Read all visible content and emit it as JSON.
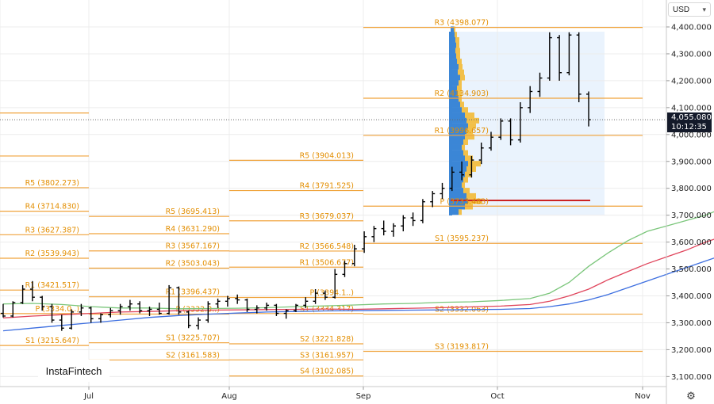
{
  "currency": {
    "label": "USD",
    "caret_icon": "chevron-down-icon"
  },
  "price_badge": {
    "price": "4,055.080",
    "countdown": "10:12:35"
  },
  "logo": {
    "text": "InstaFintech"
  },
  "settings": {
    "icon": "gear-icon"
  },
  "colors": {
    "up": "#000000",
    "pivot": "#f0a33c",
    "sma_green": "#7bc67b",
    "sma_red": "#e0455c",
    "sma_blue": "#3d6fe0",
    "current_line": "#666666",
    "poc": "#cc2222"
  },
  "chart_data": {
    "type": "ohlc",
    "ylim": [
      3040,
      4480
    ],
    "y_ticks": [
      "4,400.000",
      "4,300.000",
      "4,200.000",
      "4,100.000",
      "4,000.000",
      "3,900.000",
      "3,800.000",
      "3,700.000",
      "3,600.000",
      "3,500.000",
      "3,400.000",
      "3,300.000",
      "3,200.000",
      "3,100.000"
    ],
    "x_ticks": [
      "Jul",
      "Aug",
      "Sep",
      "Oct",
      "Nov"
    ],
    "current_price": 4055.08,
    "pivot_blocks": [
      {
        "period": "Jun",
        "levels": [
          {
            "name": "R5",
            "label": "R5 (3802.273)",
            "value": 3802.273
          },
          {
            "name": "R4",
            "label": "R4 (3714.830)",
            "value": 3714.83
          },
          {
            "name": "R3",
            "label": "R3 (3627.387)",
            "value": 3627.387
          },
          {
            "name": "R2",
            "label": "R2 (3539.943)",
            "value": 3539.943
          },
          {
            "name": "R1",
            "label": "R1 (3421.517)",
            "value": 3421.517
          },
          {
            "name": "P",
            "label": "P (3334.0..)",
            "value": 3334.0
          },
          {
            "name": "S1",
            "label": "S1 (3215.647)",
            "value": 3215.647
          }
        ]
      },
      {
        "period": "Jul",
        "levels": [
          {
            "name": "R5",
            "label": "R5 (3695.413)",
            "value": 3695.413
          },
          {
            "name": "R4",
            "label": "R4 (3631.290)",
            "value": 3631.29
          },
          {
            "name": "R3",
            "label": "R3 (3567.167)",
            "value": 3567.167
          },
          {
            "name": "R2",
            "label": "R2 (3503.043)",
            "value": 3503.043
          },
          {
            "name": "R1",
            "label": "R1 (3396.437)",
            "value": 3396.437
          },
          {
            "name": "P",
            "label": "P (3332.3..)",
            "value": 3332.3
          },
          {
            "name": "S1",
            "label": "S1 (3225.707)",
            "value": 3225.707
          },
          {
            "name": "S2",
            "label": "S2 (3161.583)",
            "value": 3161.583
          }
        ]
      },
      {
        "period": "Aug",
        "levels": [
          {
            "name": "R5",
            "label": "R5 (3904.013)",
            "value": 3904.013
          },
          {
            "name": "R4",
            "label": "R4 (3791.525)",
            "value": 3791.525
          },
          {
            "name": "R3",
            "label": "R3 (3679.037)",
            "value": 3679.037
          },
          {
            "name": "R2",
            "label": "R2 (3566.548)",
            "value": 3566.548
          },
          {
            "name": "R1",
            "label": "R1 (3506.677)",
            "value": 3506.677
          },
          {
            "name": "P",
            "label": "P (3394.1..)",
            "value": 3394.1
          },
          {
            "name": "S1",
            "label": "S1 (3334.317)",
            "value": 3334.317
          },
          {
            "name": "S2",
            "label": "S2 (3221.828)",
            "value": 3221.828
          },
          {
            "name": "S3",
            "label": "S3 (3161.957)",
            "value": 3161.957
          },
          {
            "name": "S4",
            "label": "S4 (3102.085)",
            "value": 3102.085
          }
        ]
      },
      {
        "period": "Sep",
        "levels": [
          {
            "name": "R3",
            "label": "R3 (4398.077)",
            "value": 4398.077
          },
          {
            "name": "R2",
            "label": "R2 (4134.903)",
            "value": 4134.903
          },
          {
            "name": "R1",
            "label": "R1 (3996.657)",
            "value": 3996.657
          },
          {
            "name": "P",
            "label": "P (3733.483)",
            "value": 3733.483
          },
          {
            "name": "S1",
            "label": "S1 (3595.237)",
            "value": 3595.237
          },
          {
            "name": "S2",
            "label": "S2 (3332.063)",
            "value": 3332.063
          },
          {
            "name": "S3",
            "label": "S3 (3193.817)",
            "value": 3193.817
          }
        ]
      }
    ],
    "poc_price": 3755,
    "sma_green": [
      [
        0,
        3370
      ],
      [
        3,
        3372
      ],
      [
        6,
        3368
      ],
      [
        9,
        3360
      ],
      [
        12,
        3355
      ],
      [
        15,
        3355
      ],
      [
        18,
        3352
      ],
      [
        21,
        3353
      ],
      [
        24,
        3354
      ],
      [
        27,
        3356
      ],
      [
        30,
        3360
      ],
      [
        33,
        3363
      ],
      [
        36,
        3366
      ],
      [
        39,
        3370
      ],
      [
        42,
        3372
      ],
      [
        45,
        3376
      ],
      [
        48,
        3378
      ],
      [
        51,
        3383
      ],
      [
        54,
        3390
      ],
      [
        56,
        3410
      ],
      [
        58,
        3450
      ],
      [
        60,
        3510
      ],
      [
        62,
        3560
      ],
      [
        64,
        3605
      ],
      [
        66,
        3640
      ],
      [
        68,
        3660
      ],
      [
        70,
        3680
      ],
      [
        72,
        3700
      ],
      [
        74,
        3730
      ],
      [
        76,
        3760
      ],
      [
        78,
        3790
      ],
      [
        80,
        3820
      ],
      [
        82,
        3850
      ],
      [
        84,
        3880
      ],
      [
        86,
        3915
      ],
      [
        88,
        3955
      ],
      [
        90,
        4000
      ],
      [
        92,
        4060
      ],
      [
        94,
        4130
      ],
      [
        96,
        4165
      ],
      [
        97,
        4160
      ],
      [
        98,
        4145
      ]
    ],
    "sma_red": [
      [
        0,
        3318
      ],
      [
        3,
        3325
      ],
      [
        6,
        3330
      ],
      [
        9,
        3335
      ],
      [
        12,
        3340
      ],
      [
        15,
        3342
      ],
      [
        18,
        3345
      ],
      [
        21,
        3347
      ],
      [
        24,
        3348
      ],
      [
        27,
        3349
      ],
      [
        30,
        3350
      ],
      [
        33,
        3351
      ],
      [
        36,
        3350
      ],
      [
        39,
        3352
      ],
      [
        42,
        3354
      ],
      [
        45,
        3356
      ],
      [
        48,
        3359
      ],
      [
        51,
        3362
      ],
      [
        54,
        3368
      ],
      [
        56,
        3380
      ],
      [
        58,
        3400
      ],
      [
        60,
        3425
      ],
      [
        62,
        3460
      ],
      [
        64,
        3490
      ],
      [
        66,
        3520
      ],
      [
        68,
        3545
      ],
      [
        70,
        3570
      ],
      [
        72,
        3600
      ],
      [
        74,
        3625
      ],
      [
        76,
        3650
      ],
      [
        78,
        3680
      ],
      [
        80,
        3710
      ],
      [
        82,
        3740
      ],
      [
        84,
        3770
      ],
      [
        86,
        3805
      ],
      [
        88,
        3850
      ],
      [
        90,
        3900
      ],
      [
        92,
        3970
      ],
      [
        94,
        4040
      ],
      [
        96,
        4080
      ],
      [
        98,
        4080
      ]
    ],
    "sma_blue": [
      [
        0,
        3270
      ],
      [
        3,
        3280
      ],
      [
        6,
        3290
      ],
      [
        9,
        3300
      ],
      [
        12,
        3310
      ],
      [
        15,
        3320
      ],
      [
        18,
        3327
      ],
      [
        21,
        3332
      ],
      [
        24,
        3336
      ],
      [
        27,
        3340
      ],
      [
        30,
        3342
      ],
      [
        33,
        3344
      ],
      [
        36,
        3345
      ],
      [
        39,
        3346
      ],
      [
        42,
        3347
      ],
      [
        45,
        3348
      ],
      [
        48,
        3349
      ],
      [
        51,
        3350
      ],
      [
        54,
        3353
      ],
      [
        56,
        3360
      ],
      [
        58,
        3370
      ],
      [
        60,
        3385
      ],
      [
        62,
        3405
      ],
      [
        64,
        3430
      ],
      [
        66,
        3455
      ],
      [
        68,
        3480
      ],
      [
        70,
        3505
      ],
      [
        72,
        3530
      ],
      [
        74,
        3555
      ],
      [
        76,
        3580
      ],
      [
        78,
        3610
      ],
      [
        80,
        3640
      ],
      [
        82,
        3665
      ],
      [
        84,
        3690
      ],
      [
        86,
        3720
      ],
      [
        88,
        3750
      ],
      [
        90,
        3780
      ],
      [
        92,
        3820
      ],
      [
        94,
        3860
      ],
      [
        96,
        3905
      ],
      [
        98,
        3950
      ],
      [
        100,
        3975
      ]
    ],
    "bars": [
      [
        3335,
        3370,
        3320,
        3325
      ],
      [
        3325,
        3380,
        3320,
        3375
      ],
      [
        3375,
        3440,
        3370,
        3425
      ],
      [
        3425,
        3455,
        3380,
        3395
      ],
      [
        3395,
        3400,
        3345,
        3360
      ],
      [
        3360,
        3370,
        3300,
        3310
      ],
      [
        3310,
        3330,
        3270,
        3280
      ],
      [
        3280,
        3350,
        3275,
        3340
      ],
      [
        3340,
        3370,
        3325,
        3355
      ],
      [
        3355,
        3360,
        3300,
        3315
      ],
      [
        3315,
        3335,
        3300,
        3330
      ],
      [
        3330,
        3355,
        3320,
        3345
      ],
      [
        3345,
        3370,
        3330,
        3360
      ],
      [
        3360,
        3385,
        3345,
        3370
      ],
      [
        3370,
        3380,
        3335,
        3345
      ],
      [
        3345,
        3360,
        3325,
        3350
      ],
      [
        3350,
        3375,
        3330,
        3335
      ],
      [
        3335,
        3440,
        3330,
        3430
      ],
      [
        3430,
        3435,
        3330,
        3340
      ],
      [
        3340,
        3345,
        3280,
        3290
      ],
      [
        3290,
        3320,
        3275,
        3310
      ],
      [
        3310,
        3380,
        3300,
        3370
      ],
      [
        3370,
        3390,
        3355,
        3380
      ],
      [
        3380,
        3400,
        3360,
        3390
      ],
      [
        3390,
        3405,
        3370,
        3385
      ],
      [
        3385,
        3390,
        3340,
        3350
      ],
      [
        3350,
        3365,
        3335,
        3355
      ],
      [
        3355,
        3375,
        3345,
        3365
      ],
      [
        3365,
        3370,
        3325,
        3335
      ],
      [
        3335,
        3350,
        3315,
        3345
      ],
      [
        3345,
        3370,
        3340,
        3365
      ],
      [
        3365,
        3395,
        3355,
        3380
      ],
      [
        3380,
        3425,
        3370,
        3410
      ],
      [
        3410,
        3420,
        3385,
        3395
      ],
      [
        3395,
        3500,
        3390,
        3480
      ],
      [
        3480,
        3530,
        3470,
        3520
      ],
      [
        3520,
        3590,
        3510,
        3575
      ],
      [
        3575,
        3640,
        3560,
        3620
      ],
      [
        3620,
        3660,
        3600,
        3650
      ],
      [
        3650,
        3680,
        3625,
        3640
      ],
      [
        3640,
        3670,
        3620,
        3660
      ],
      [
        3660,
        3700,
        3640,
        3690
      ],
      [
        3690,
        3710,
        3660,
        3680
      ],
      [
        3680,
        3760,
        3670,
        3750
      ],
      [
        3750,
        3790,
        3730,
        3780
      ],
      [
        3780,
        3820,
        3760,
        3800
      ],
      [
        3800,
        3880,
        3790,
        3860
      ],
      [
        3860,
        3900,
        3830,
        3850
      ],
      [
        3850,
        3920,
        3840,
        3905
      ],
      [
        3905,
        3970,
        3890,
        3950
      ],
      [
        3950,
        4010,
        3940,
        3990
      ],
      [
        3990,
        4060,
        3980,
        4050
      ],
      [
        4050,
        4060,
        3960,
        3980
      ],
      [
        3980,
        4120,
        3970,
        4100
      ],
      [
        4100,
        4180,
        4080,
        4160
      ],
      [
        4160,
        4230,
        4140,
        4210
      ],
      [
        4210,
        4380,
        4200,
        4360
      ],
      [
        4360,
        4370,
        4200,
        4230
      ],
      [
        4230,
        4380,
        4220,
        4370
      ],
      [
        4370,
        4380,
        4120,
        4150
      ],
      [
        4150,
        4160,
        4030,
        4055
      ]
    ]
  }
}
